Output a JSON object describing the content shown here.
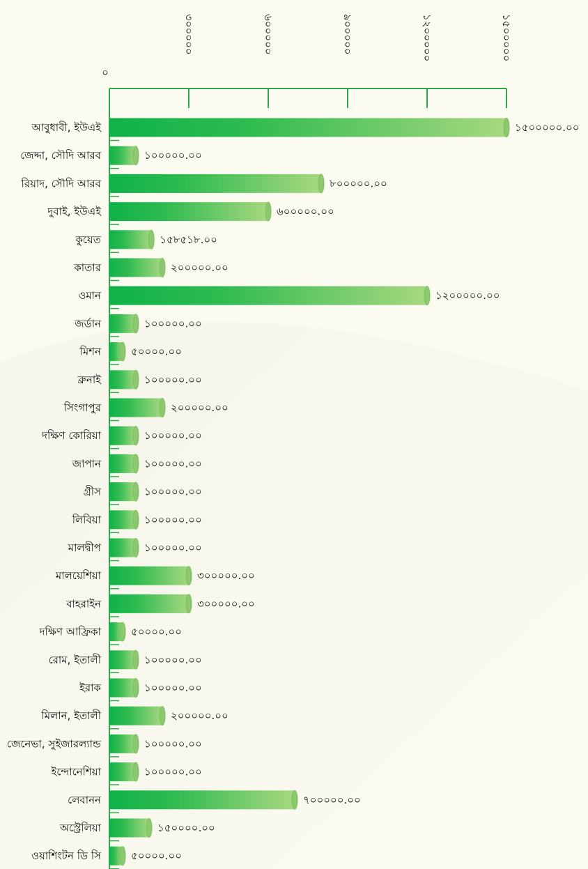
{
  "chart_data": {
    "type": "bar",
    "orientation": "horizontal",
    "title": "",
    "xlabel": "",
    "ylabel": "",
    "xlim": [
      0,
      1500000
    ],
    "grid": false,
    "legend": "none",
    "axis_position": "top",
    "x_tick_labels": [
      "০",
      "৩০০০০০",
      "৬০০০০০",
      "৯০০০০০",
      "১২০০০০০",
      "১৫০০০০০"
    ],
    "x_ticks": [
      0,
      300000,
      600000,
      900000,
      1200000,
      1500000
    ],
    "categories": [
      "আবুধাবী, ইউএই",
      "জেদ্দা, সৌদি আরব",
      "রিয়াদ, সৌদি আরব",
      "দুবাই, ইউএই",
      "কুয়েত",
      "কাতার",
      "ওমান",
      "জর্ডান",
      "মিশন",
      "ব্রুনাই",
      "সিংগাপুর",
      "দক্ষিণ কোরিয়া",
      "জাপান",
      "গ্রীস",
      "লিবিয়া",
      "মালদ্বীপ",
      "মালয়েশিয়া",
      "বাহরাইন",
      "দক্ষিণ আফ্রিকা",
      "রোম, ইতালী",
      "ইরাক",
      "মিলান, ইতালী",
      "জেনেভা, সুইজারল্যান্ড",
      "ইন্দোনেশিয়া",
      "লেবানন",
      "অস্ট্রেলিয়া",
      "ওয়াশিংটন ডি সি"
    ],
    "values": [
      1500000,
      100000,
      800000,
      600000,
      158518,
      200000,
      1200000,
      100000,
      50000,
      100000,
      200000,
      100000,
      100000,
      100000,
      100000,
      100000,
      300000,
      300000,
      50000,
      100000,
      100000,
      200000,
      100000,
      100000,
      700000,
      150000,
      50000
    ],
    "value_labels": [
      "১৫০০০০০.০০",
      "১০০০০০.০০",
      "৮০০০০০.০০",
      "৬০০০০০.০০",
      "১৫৮৫১৮.০০",
      "২০০০০০.০০",
      "১২০০০০০.০০",
      "১০০০০০.০০",
      "৫০০০০.০০",
      "১০০০০০.০০",
      "২০০০০০.০০",
      "১০০০০০.০০",
      "১০০০০০.০০",
      "১০০০০০.০০",
      "১০০০০০.০০",
      "১০০০০০.০০",
      "৩০০০০০.০০",
      "৩০০০০০.০০",
      "৫০০০০.০০",
      "১০০০০০.০০",
      "১০০০০০.০০",
      "২০০০০০.০০",
      "১০০০০০.০০",
      "১০০০০০.০০",
      "৭০০০০০.০০",
      "১৫০০০০.০০",
      "৫০০০০.০০"
    ],
    "colors": {
      "bar_dark": "#0fb24a",
      "bar_light": "#a8d880",
      "bar_cap": "#8cc870",
      "axis": "#2eaa4a",
      "background": "#fbfbf1"
    }
  }
}
